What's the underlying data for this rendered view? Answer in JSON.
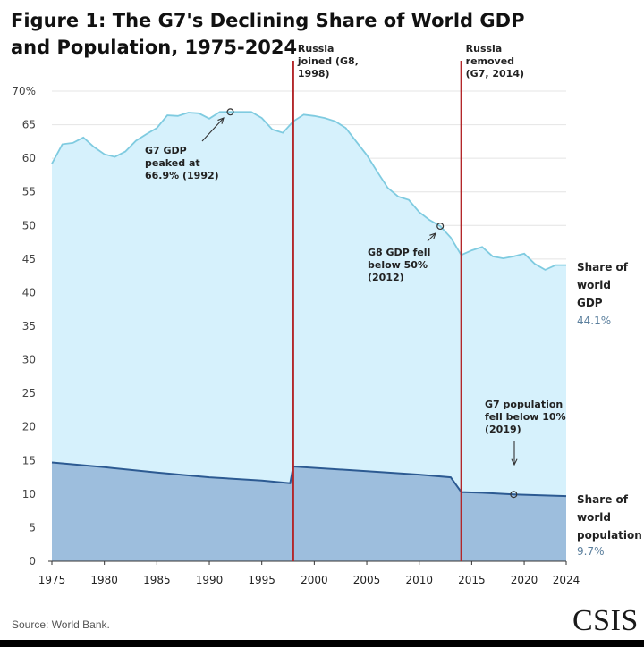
{
  "title": "Figure 1: The G7's Declining Share of World GDP and Population, 1975-2024",
  "source": "Source: World Bank.",
  "logo": "CSIS",
  "chart_data": {
    "type": "area",
    "title": "Figure 1: The G7's Declining Share of World GDP and Population, 1975-2024",
    "xlim": [
      1975,
      2024
    ],
    "ylim": [
      0,
      70
    ],
    "x_ticks": [
      "1975",
      "1980",
      "1985",
      "1990",
      "1995",
      "2000",
      "2005",
      "2010",
      "2015",
      "2020",
      "2024"
    ],
    "y_ticks": [
      "70%",
      "65",
      "60",
      "55",
      "50",
      "45",
      "40",
      "35",
      "30",
      "25",
      "20",
      "15",
      "10",
      "5",
      "0"
    ],
    "grid": true,
    "colors": {
      "gdp_fill": "#d6f1fc",
      "gdp_line": "#7fcbe0",
      "pop_fill": "#9dbedd",
      "pop_line": "#2c5a92",
      "event_line": "#b3272a",
      "label_value": "#5b7f9d"
    },
    "series": [
      {
        "key": "gdp",
        "x": [
          1975,
          1976,
          1977,
          1978,
          1979,
          1980,
          1981,
          1982,
          1983,
          1984,
          1985,
          1986,
          1987,
          1988,
          1989,
          1990,
          1991,
          1992,
          1993,
          1994,
          1995,
          1996,
          1997,
          1998,
          1999,
          2000,
          2001,
          2002,
          2003,
          2004,
          2005,
          2006,
          2007,
          2008,
          2009,
          2010,
          2011,
          2012,
          2013,
          2014,
          2015,
          2016,
          2017,
          2018,
          2019,
          2020,
          2021,
          2022,
          2023,
          2024
        ],
        "values": [
          59.2,
          62.1,
          62.3,
          63.1,
          61.7,
          60.6,
          60.2,
          61.0,
          62.6,
          63.6,
          64.5,
          66.4,
          66.3,
          66.8,
          66.7,
          65.9,
          66.9,
          66.9,
          66.9,
          66.9,
          66.0,
          64.3,
          63.8,
          65.5,
          66.5,
          66.3,
          66.0,
          65.5,
          64.5,
          62.5,
          60.5,
          58.0,
          55.6,
          54.3,
          53.8,
          52.0,
          50.8,
          49.9,
          48.2,
          45.6,
          46.3,
          46.8,
          45.4,
          45.1,
          45.4,
          45.8,
          44.3,
          43.4,
          44.1,
          44.1
        ]
      },
      {
        "key": "population",
        "x": [
          1975,
          1980,
          1985,
          1990,
          1995,
          1997.7,
          1998,
          2005,
          2010,
          2013,
          2014,
          2016,
          2019,
          2024
        ],
        "values": [
          14.7,
          14.0,
          13.2,
          12.5,
          12.0,
          11.6,
          14.1,
          13.4,
          12.9,
          12.5,
          10.3,
          10.2,
          9.95,
          9.7
        ]
      }
    ],
    "series_labels": {
      "gdp": {
        "lines": [
          "Share of",
          "world",
          "GDP"
        ],
        "value": "44.1%"
      },
      "population": {
        "lines": [
          "Share of",
          "world",
          "population"
        ],
        "value": "9.7%"
      }
    },
    "events": [
      {
        "x": 1998,
        "lines": [
          "Russia",
          "joined (G8,",
          "1998)"
        ]
      },
      {
        "x": 2014,
        "lines": [
          "Russia",
          "removed",
          "(G7, 2014)"
        ]
      }
    ],
    "annotations": [
      {
        "point": [
          1992,
          66.9
        ],
        "lines": [
          "G7 GDP",
          "peaked at",
          "66.9% (1992)"
        ]
      },
      {
        "point": [
          2012,
          49.9
        ],
        "lines": [
          "G8 GDP fell",
          "below 50%",
          "(2012)"
        ]
      },
      {
        "point": [
          2019,
          9.95
        ],
        "lines": [
          "G7 population",
          "fell below 10%",
          "(2019)"
        ]
      }
    ]
  }
}
